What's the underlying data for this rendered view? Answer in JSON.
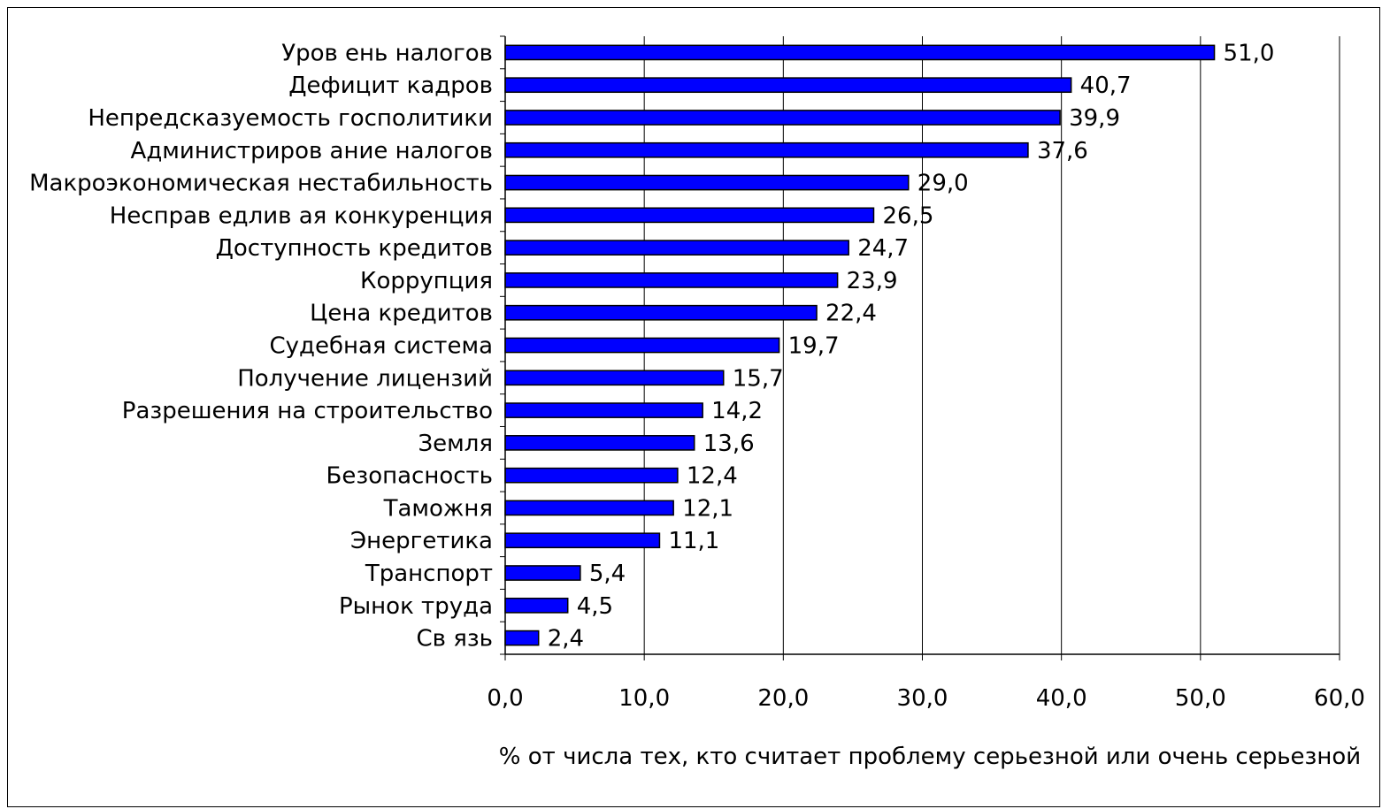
{
  "chart_data": {
    "type": "bar",
    "orientation": "horizontal",
    "categories": [
      "Уров ень налогов",
      "Дефицит кадров",
      "Непредсказуемость госполитики",
      "Администриров ание налогов",
      "Макроэкономическая нестабильность",
      "Несправ едлив ая конкуренция",
      "Доступность кредитов",
      "Коррупция",
      "Цена кредитов",
      "Судебная система",
      "Получение лицензий",
      "Разрешения на строительство",
      "Земля",
      "Безопасность",
      "Таможня",
      "Энергетика",
      "Транспорт",
      "Рынок труда",
      "Св язь"
    ],
    "values": [
      51.0,
      40.7,
      39.9,
      37.6,
      29.0,
      26.5,
      24.7,
      23.9,
      22.4,
      19.7,
      15.7,
      14.2,
      13.6,
      12.4,
      12.1,
      11.1,
      5.4,
      4.5,
      2.4
    ],
    "value_labels": [
      "51,0",
      "40,7",
      "39,9",
      "37,6",
      "29,0",
      "26,5",
      "24,7",
      "23,9",
      "22,4",
      "19,7",
      "15,7",
      "14,2",
      "13,6",
      "12,4",
      "12,1",
      "11,1",
      "5,4",
      "4,5",
      "2,4"
    ],
    "xlim": [
      0,
      60
    ],
    "xticks": [
      0,
      10,
      20,
      30,
      40,
      50,
      60
    ],
    "xtick_labels": [
      "0,0",
      "10,0",
      "20,0",
      "30,0",
      "40,0",
      "50,0",
      "60,0"
    ],
    "xlabel": "% от числа тех, кто считает проблему серьезной или очень серьезной",
    "ylabel": "",
    "title": "",
    "grid": "vertical",
    "legend": "none",
    "bar_color": "#0000ff",
    "bar_edge_color": "#000000"
  }
}
